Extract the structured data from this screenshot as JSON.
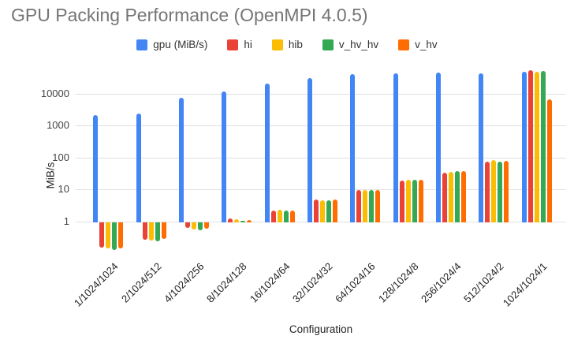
{
  "page": {
    "background": "#ffffff"
  },
  "chart_data": {
    "type": "bar",
    "title": "GPU Packing Performance (OpenMPI 4.0.5)",
    "title_color": "#757575",
    "xlabel": "Configuration",
    "ylabel": "MiB/s",
    "y_scale": "log",
    "y_ticks": [
      1,
      10,
      100,
      1000,
      10000
    ],
    "ylim": [
      0.1,
      70000
    ],
    "grid": true,
    "gridline_color": "#e0e0e0",
    "legend_position": "top-center",
    "categories": [
      "1/1024/1024",
      "2/1024/512",
      "4/1024/256",
      "8/1024/128",
      "16/1024/64",
      "32/1024/32",
      "64/1024/16",
      "128/1024/8",
      "256/1024/4",
      "512/1024/2",
      "1024/1024/1"
    ],
    "series": [
      {
        "name": "gpu (MiB/s)",
        "color": "#4285F4",
        "values": [
          2200,
          2500,
          8000,
          12000,
          22000,
          33000,
          42000,
          44000,
          48000,
          46000,
          52000
        ]
      },
      {
        "name": "hi",
        "color": "#EA4335",
        "values": [
          0.16,
          0.28,
          0.66,
          1.3,
          2.3,
          5.2,
          10,
          20,
          36,
          80,
          56000
        ]
      },
      {
        "name": "hib",
        "color": "#FBBC04",
        "values": [
          0.15,
          0.27,
          0.6,
          1.25,
          2.5,
          5.0,
          10.5,
          22,
          38,
          86,
          52000
        ]
      },
      {
        "name": "v_hv_hv",
        "color": "#34A853",
        "values": [
          0.14,
          0.26,
          0.58,
          1.15,
          2.4,
          5.0,
          10.2,
          22,
          40,
          77,
          55000
        ]
      },
      {
        "name": "v_hv",
        "color": "#FF6D01",
        "values": [
          0.15,
          0.3,
          0.62,
          1.2,
          2.4,
          5.3,
          10.5,
          21,
          40,
          83,
          7000
        ]
      }
    ]
  }
}
